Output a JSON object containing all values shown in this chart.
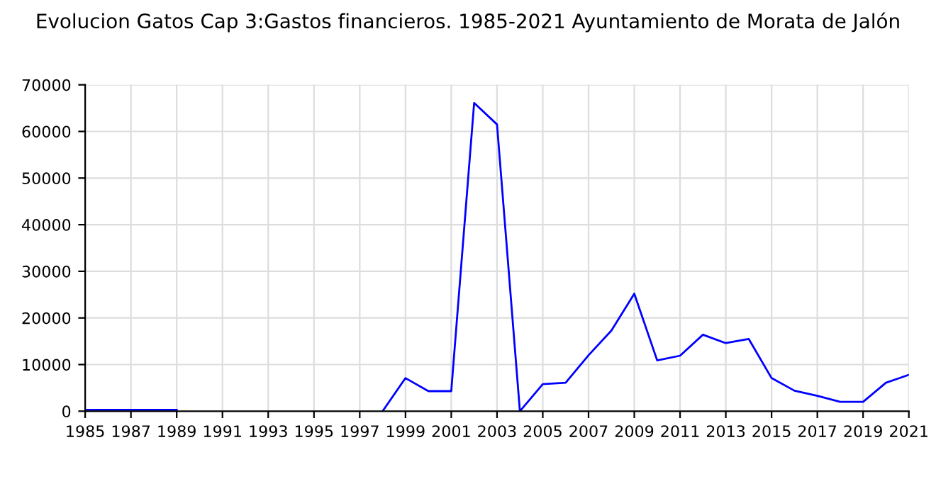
{
  "chart_data": {
    "type": "line",
    "title": "Evolucion Gatos Cap 3:Gastos financieros. 1985-2021 Ayuntamiento de Morata de Jalón",
    "x": [
      1985,
      1986,
      1987,
      1988,
      1989,
      1990,
      1991,
      1992,
      1993,
      1994,
      1995,
      1996,
      1997,
      1998,
      1999,
      2000,
      2001,
      2002,
      2003,
      2004,
      2005,
      2006,
      2007,
      2008,
      2009,
      2010,
      2011,
      2012,
      2013,
      2014,
      2015,
      2016,
      2017,
      2018,
      2019,
      2020,
      2021
    ],
    "series": [
      {
        "color": "#0000ff",
        "values": [
          300,
          300,
          300,
          300,
          300,
          null,
          null,
          null,
          null,
          null,
          null,
          null,
          null,
          0,
          7100,
          4300,
          4300,
          66100,
          61500,
          0,
          5800,
          6100,
          12000,
          17300,
          25200,
          10900,
          11900,
          16400,
          14600,
          15500,
          7100,
          4400,
          3300,
          2000,
          2000,
          6100,
          7800
        ]
      }
    ],
    "xlim": [
      1985,
      2021
    ],
    "xticks": [
      1985,
      1987,
      1989,
      1991,
      1993,
      1995,
      1997,
      1999,
      2001,
      2003,
      2005,
      2007,
      2009,
      2011,
      2013,
      2015,
      2017,
      2019,
      2021
    ],
    "ylim": [
      0,
      70000
    ],
    "yticks": [
      0,
      10000,
      20000,
      30000,
      40000,
      50000,
      60000,
      70000
    ],
    "grid": true
  }
}
